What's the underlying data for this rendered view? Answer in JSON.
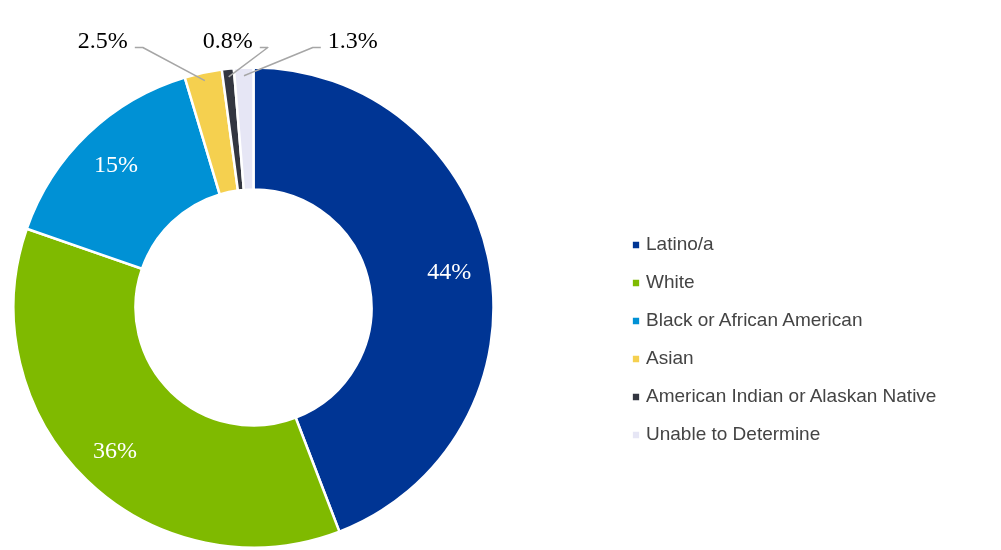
{
  "chart_data": {
    "type": "donut",
    "categories": [
      "Latino/a",
      "White",
      "Black or African American",
      "Asian",
      "American Indian or Alaskan Native",
      "Unable to Determine"
    ],
    "values": [
      44,
      36,
      15,
      2.5,
      0.8,
      1.3
    ],
    "colors": [
      "#003594",
      "#7fba00",
      "#0091d5",
      "#f5d04f",
      "#333640",
      "#e6e6f5"
    ],
    "value_labels": [
      "44%",
      "36%",
      "15%",
      "2.5%",
      "0.8%",
      "1.3%"
    ],
    "legend": "right"
  }
}
